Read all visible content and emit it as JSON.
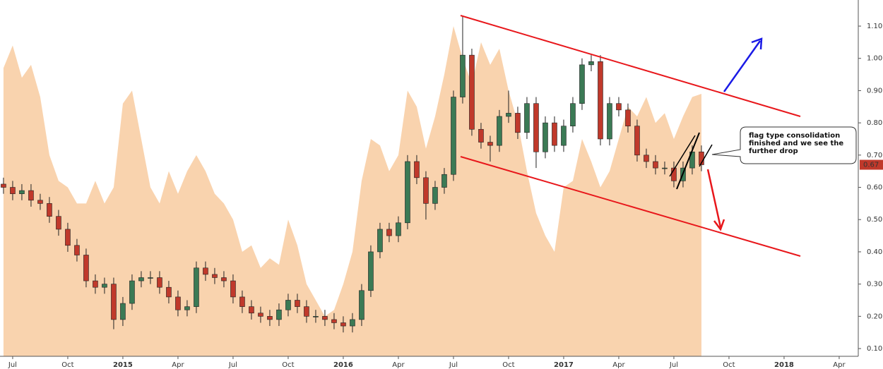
{
  "chart_data": {
    "type": "candlestick",
    "x": [
      5.5,
      6,
      6.5,
      7,
      7.5,
      8,
      8.5,
      9,
      9.5,
      10,
      10.5,
      11,
      11.5,
      12,
      12.5,
      13,
      13.5,
      14,
      14.5,
      15,
      15.5,
      16,
      16.5,
      17,
      17.5,
      18,
      18.5,
      19,
      19.5,
      20,
      20.5,
      21,
      21.5,
      22,
      22.5,
      23,
      23.5,
      24,
      24.5,
      25,
      25.5,
      26,
      26.5,
      27,
      27.5,
      28,
      28.5,
      29,
      29.5,
      30,
      30.5,
      31,
      31.5,
      32,
      32.5,
      33,
      33.5,
      34,
      34.5,
      35,
      35.5,
      36,
      36.5,
      37,
      37.5,
      38,
      38.5,
      39,
      39.5,
      40,
      40.5,
      41,
      41.5,
      42,
      42.5,
      43,
      43.5
    ],
    "open": [
      0.61,
      0.6,
      0.58,
      0.59,
      0.56,
      0.55,
      0.51,
      0.47,
      0.42,
      0.39,
      0.31,
      0.29,
      0.3,
      0.19,
      0.24,
      0.31,
      0.32,
      0.32,
      0.29,
      0.26,
      0.22,
      0.23,
      0.35,
      0.33,
      0.32,
      0.31,
      0.26,
      0.23,
      0.21,
      0.2,
      0.19,
      0.22,
      0.25,
      0.23,
      0.2,
      0.2,
      0.19,
      0.18,
      0.17,
      0.19,
      0.28,
      0.4,
      0.47,
      0.45,
      0.49,
      0.68,
      0.63,
      0.55,
      0.6,
      0.64,
      0.88,
      1.01,
      0.78,
      0.74,
      0.73,
      0.82,
      0.83,
      0.77,
      0.86,
      0.71,
      0.8,
      0.73,
      0.79,
      0.86,
      0.98,
      0.99,
      0.75,
      0.86,
      0.84,
      0.79,
      0.7,
      0.68,
      0.66,
      0.66,
      0.62,
      0.66,
      0.71
    ],
    "high": [
      0.63,
      0.62,
      0.61,
      0.61,
      0.58,
      0.57,
      0.53,
      0.49,
      0.44,
      0.41,
      0.33,
      0.32,
      0.32,
      0.26,
      0.33,
      0.34,
      0.34,
      0.34,
      0.31,
      0.28,
      0.25,
      0.37,
      0.37,
      0.35,
      0.34,
      0.33,
      0.28,
      0.25,
      0.23,
      0.22,
      0.24,
      0.27,
      0.27,
      0.25,
      0.22,
      0.22,
      0.21,
      0.2,
      0.21,
      0.3,
      0.42,
      0.49,
      0.49,
      0.51,
      0.7,
      0.7,
      0.65,
      0.62,
      0.66,
      0.9,
      1.13,
      1.03,
      0.8,
      0.76,
      0.84,
      0.9,
      0.85,
      0.88,
      0.88,
      0.82,
      0.82,
      0.81,
      0.88,
      1.0,
      1.01,
      1.01,
      0.88,
      0.88,
      0.86,
      0.81,
      0.72,
      0.7,
      0.68,
      0.68,
      0.68,
      0.73,
      0.73
    ],
    "low": [
      0.58,
      0.56,
      0.56,
      0.54,
      0.53,
      0.49,
      0.45,
      0.4,
      0.37,
      0.29,
      0.27,
      0.27,
      0.16,
      0.17,
      0.22,
      0.29,
      0.3,
      0.27,
      0.24,
      0.2,
      0.2,
      0.21,
      0.31,
      0.3,
      0.29,
      0.24,
      0.21,
      0.19,
      0.18,
      0.17,
      0.17,
      0.2,
      0.21,
      0.18,
      0.18,
      0.17,
      0.16,
      0.15,
      0.15,
      0.17,
      0.26,
      0.38,
      0.43,
      0.43,
      0.47,
      0.61,
      0.5,
      0.53,
      0.58,
      0.62,
      0.86,
      0.76,
      0.72,
      0.68,
      0.71,
      0.8,
      0.75,
      0.75,
      0.66,
      0.69,
      0.71,
      0.71,
      0.77,
      0.84,
      0.96,
      0.73,
      0.73,
      0.82,
      0.77,
      0.68,
      0.66,
      0.64,
      0.64,
      0.6,
      0.6,
      0.64,
      0.65
    ],
    "close": [
      0.6,
      0.58,
      0.59,
      0.56,
      0.55,
      0.51,
      0.47,
      0.42,
      0.39,
      0.31,
      0.29,
      0.3,
      0.19,
      0.24,
      0.31,
      0.32,
      0.32,
      0.29,
      0.26,
      0.22,
      0.23,
      0.35,
      0.33,
      0.32,
      0.31,
      0.26,
      0.23,
      0.21,
      0.2,
      0.19,
      0.22,
      0.25,
      0.23,
      0.2,
      0.2,
      0.19,
      0.18,
      0.17,
      0.19,
      0.28,
      0.4,
      0.47,
      0.45,
      0.49,
      0.68,
      0.63,
      0.55,
      0.6,
      0.64,
      0.88,
      1.01,
      0.78,
      0.74,
      0.73,
      0.82,
      0.83,
      0.77,
      0.86,
      0.71,
      0.8,
      0.73,
      0.79,
      0.86,
      0.98,
      0.99,
      0.75,
      0.86,
      0.84,
      0.79,
      0.7,
      0.68,
      0.66,
      0.66,
      0.62,
      0.66,
      0.71,
      0.67
    ],
    "area": [
      0.97,
      1.04,
      0.94,
      0.98,
      0.88,
      0.7,
      0.62,
      0.6,
      0.55,
      0.55,
      0.62,
      0.55,
      0.6,
      0.86,
      0.9,
      0.75,
      0.6,
      0.55,
      0.65,
      0.58,
      0.65,
      0.7,
      0.65,
      0.58,
      0.55,
      0.5,
      0.4,
      0.42,
      0.35,
      0.38,
      0.36,
      0.5,
      0.42,
      0.3,
      0.25,
      0.2,
      0.22,
      0.3,
      0.4,
      0.62,
      0.75,
      0.73,
      0.65,
      0.7,
      0.9,
      0.85,
      0.72,
      0.82,
      0.95,
      1.1,
      1.0,
      0.92,
      1.05,
      0.98,
      1.03,
      0.9,
      0.8,
      0.65,
      0.52,
      0.45,
      0.4,
      0.6,
      0.62,
      0.75,
      0.68,
      0.6,
      0.65,
      0.75,
      0.85,
      0.82,
      0.88,
      0.8,
      0.83,
      0.75,
      0.82,
      0.88,
      0.89
    ],
    "up_color": "#3b7a55",
    "down_color": "#c0392b",
    "area_color": "#f9d3ae",
    "xlim": [
      5.31,
      52.04
    ],
    "ylim": [
      0.076,
      1.181
    ],
    "xticks": [
      {
        "value": 6,
        "label": "Jul"
      },
      {
        "value": 9,
        "label": "Oct"
      },
      {
        "value": 12,
        "label": "2015"
      },
      {
        "value": 15,
        "label": "Apr"
      },
      {
        "value": 18,
        "label": "Jul"
      },
      {
        "value": 21,
        "label": "Oct"
      },
      {
        "value": 24,
        "label": "2016"
      },
      {
        "value": 27,
        "label": "Apr"
      },
      {
        "value": 30,
        "label": "Jul"
      },
      {
        "value": 33,
        "label": "Oct"
      },
      {
        "value": 36,
        "label": "2017"
      },
      {
        "value": 39,
        "label": "Apr"
      },
      {
        "value": 42,
        "label": "Jul"
      },
      {
        "value": 45,
        "label": "Oct"
      },
      {
        "value": 48,
        "label": "2018"
      },
      {
        "value": 51,
        "label": "Apr"
      }
    ],
    "yticks": [
      {
        "value": 0.1,
        "label": "0.10"
      },
      {
        "value": 0.2,
        "label": "0.20"
      },
      {
        "value": 0.3,
        "label": "0.30"
      },
      {
        "value": 0.4,
        "label": "0.40"
      },
      {
        "value": 0.5,
        "label": "0.50"
      },
      {
        "value": 0.6,
        "label": "0.60"
      },
      {
        "value": 0.7,
        "label": "0.70"
      },
      {
        "value": 0.8,
        "label": "0.80"
      },
      {
        "value": 0.9,
        "label": "0.90"
      },
      {
        "value": 1.0,
        "label": "1.00"
      },
      {
        "value": 1.1,
        "label": "1.10"
      }
    ],
    "annotation": [
      "flag type consolidation",
      "finished and we see the",
      "further drop"
    ]
  }
}
